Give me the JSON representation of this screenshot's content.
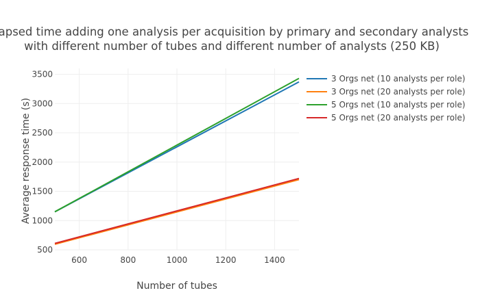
{
  "chart_data": {
    "type": "line",
    "title_line1": "Elapsed time adding one analysis per acquisition by primary and secondary analysts",
    "title_line2": "with different number of tubes and different number of analysts (250 KB)",
    "xlabel": "Number of tubes",
    "ylabel": "Average response time (s)",
    "xlim": [
      500,
      1500
    ],
    "ylim": [
      500,
      3600
    ],
    "xticks": [
      600,
      800,
      1000,
      1200,
      1400
    ],
    "yticks": [
      500,
      1000,
      1500,
      2000,
      2500,
      3000,
      3500
    ],
    "grid": true,
    "legend_position": "top-right, outside plot",
    "x": [
      500,
      1500
    ],
    "series": [
      {
        "name": "3 Orgs net (10 analysts per role)",
        "color": "#1f77b4",
        "values": [
          1150,
          3370
        ]
      },
      {
        "name": "3 Orgs net (20 analysts per role)",
        "color": "#ff7f0e",
        "values": [
          595,
          1700
        ]
      },
      {
        "name": "5 Orgs net (10 analysts per role)",
        "color": "#2ca02c",
        "values": [
          1150,
          3430
        ]
      },
      {
        "name": "5 Orgs net (20 analysts per role)",
        "color": "#d62728",
        "values": [
          610,
          1720
        ]
      }
    ]
  }
}
